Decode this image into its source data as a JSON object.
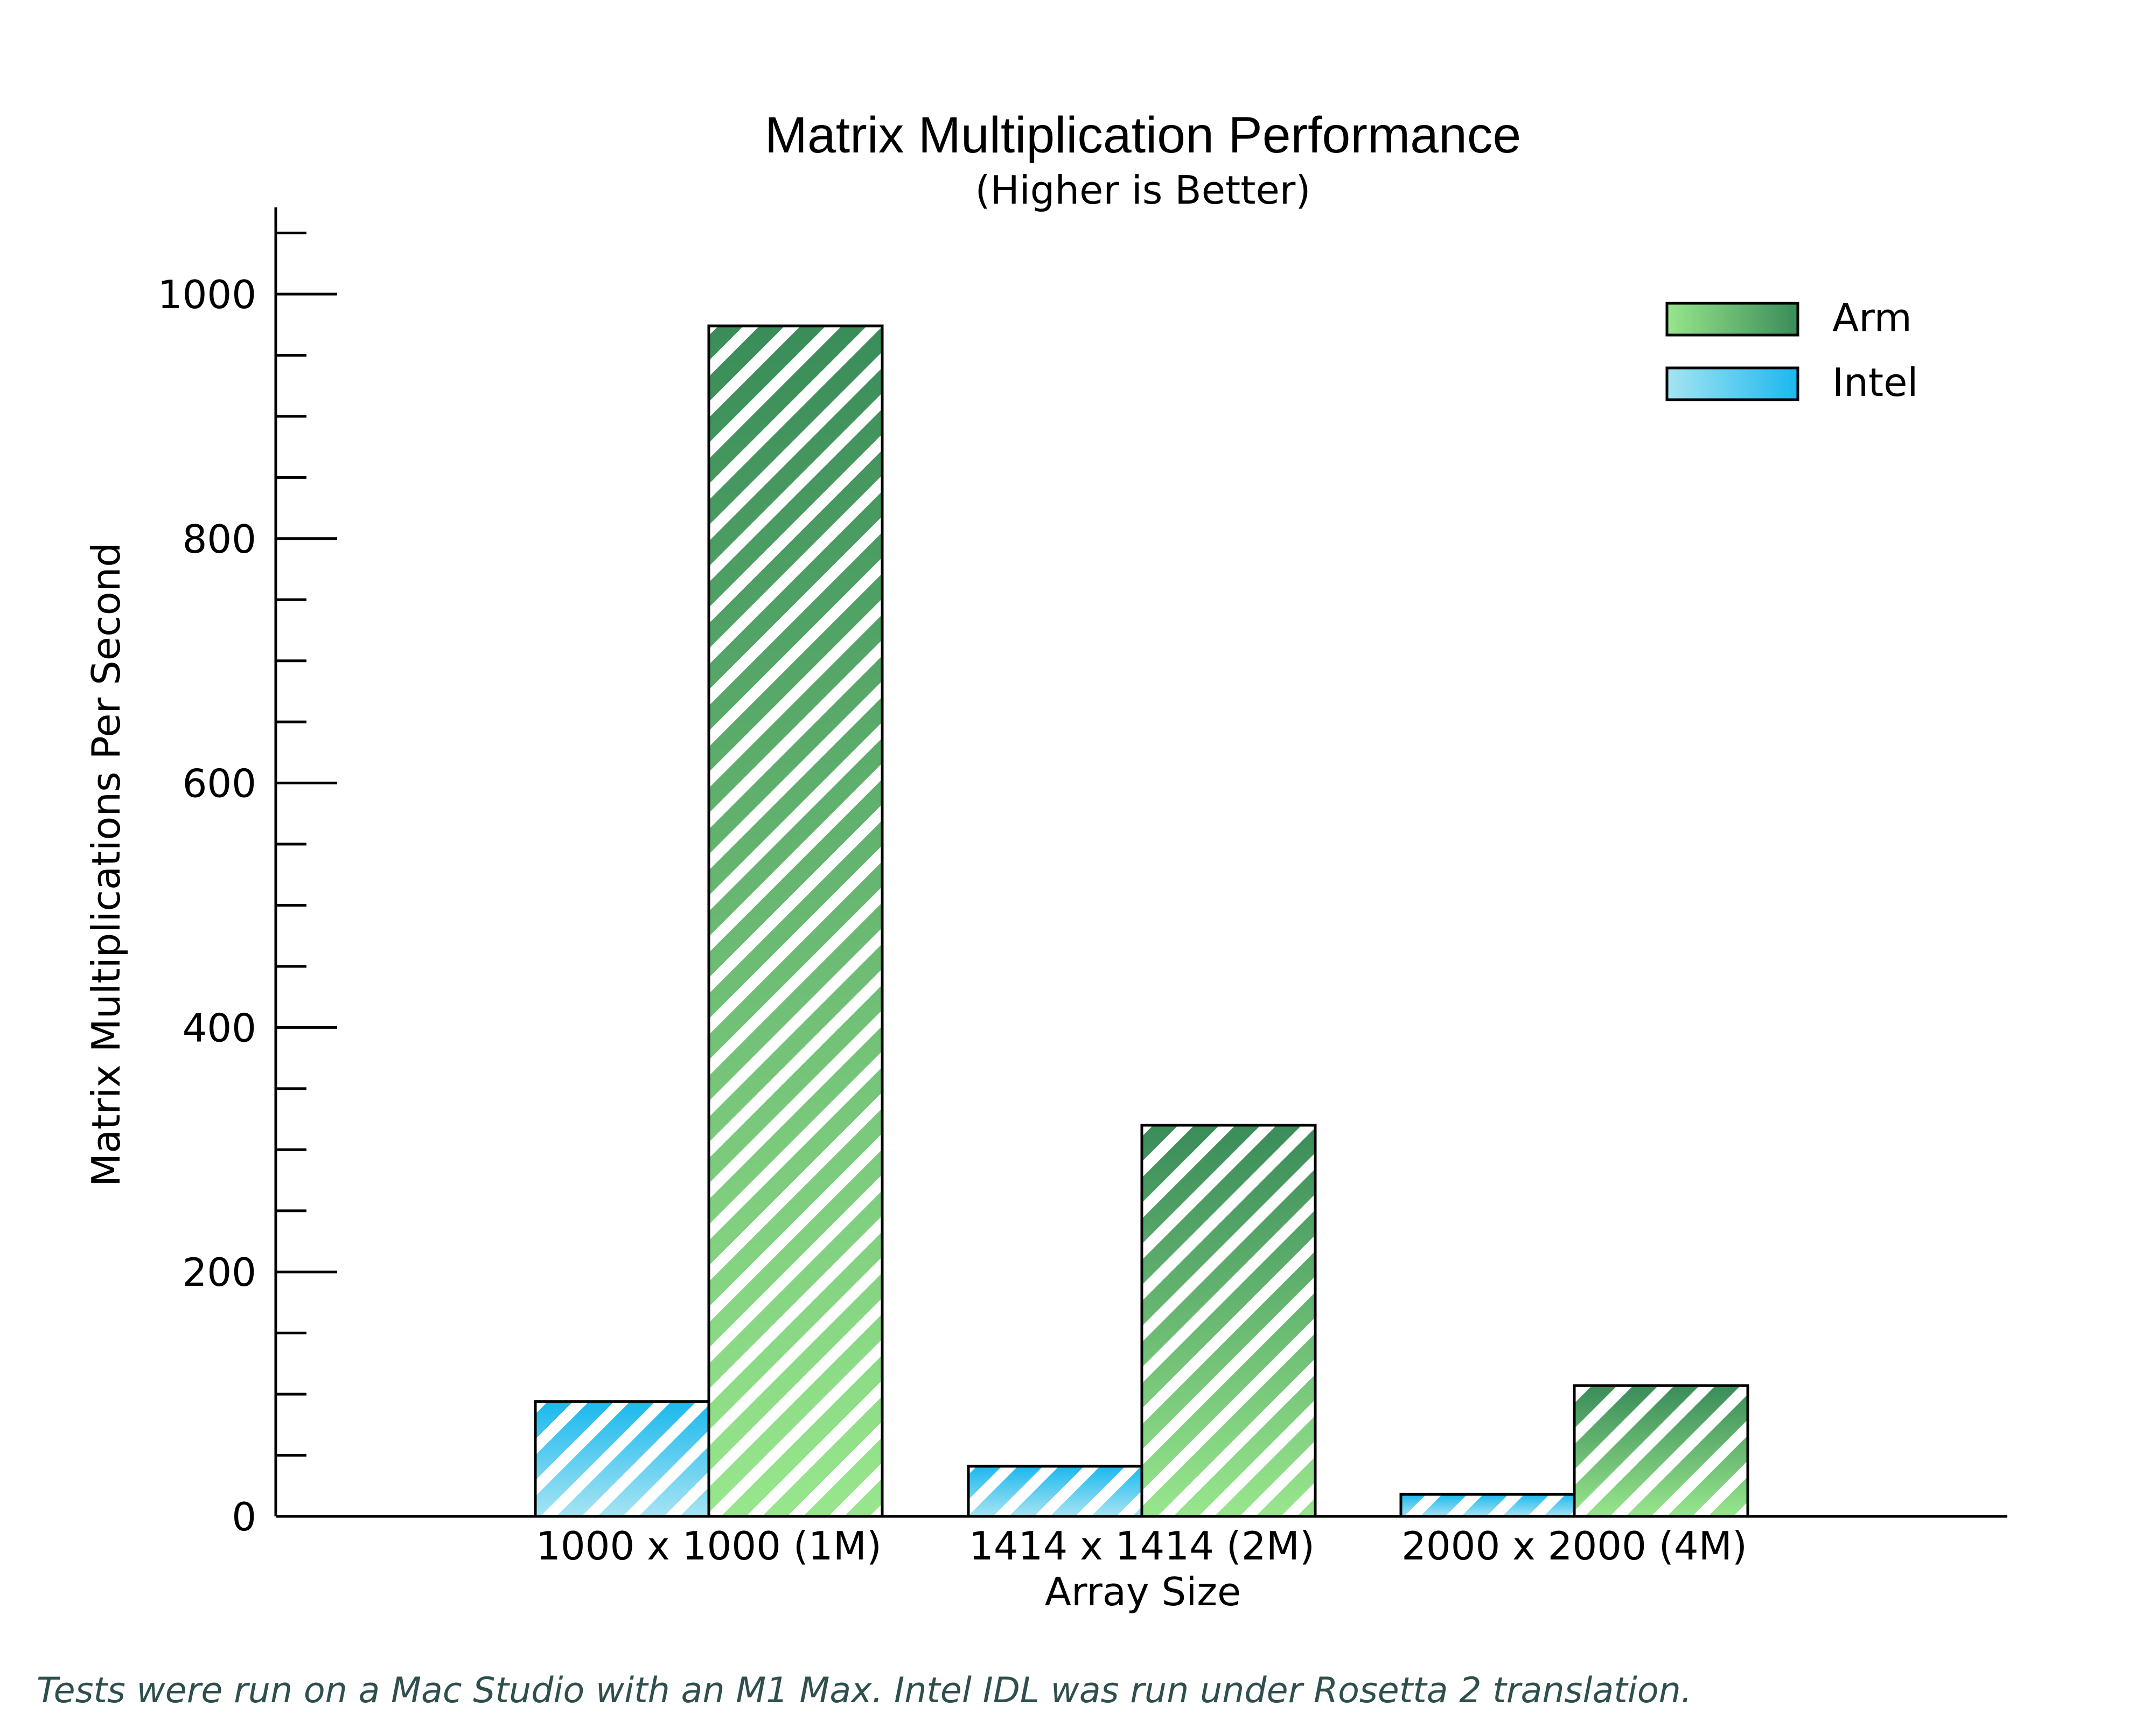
{
  "chart_data": {
    "type": "bar",
    "title": "Matrix Multiplication Performance",
    "subtitle": "(Higher is Better)",
    "xlabel": "Array Size",
    "ylabel": "Matrix Multiplications Per Second",
    "categories": [
      "1000 x 1000 (1M)",
      "1414 x 1414 (2M)",
      "2000 x 2000 (4M)"
    ],
    "series": [
      {
        "name": "Intel",
        "values": [
          94,
          41,
          18
        ],
        "gradient": [
          "#a6e4f2",
          "#1ab8ee"
        ]
      },
      {
        "name": "Arm",
        "values": [
          974,
          320,
          107
        ],
        "gradient": [
          "#98e68c",
          "#3a8c59"
        ]
      }
    ],
    "legend_order": [
      "Arm",
      "Intel"
    ],
    "legend_position": "top-right",
    "ylim": [
      0,
      1070
    ],
    "yticks": [
      0,
      200,
      400,
      600,
      800,
      1000
    ],
    "yticks_minor_step": 50,
    "grid": false,
    "hatch": "diagonal white stripes",
    "footnote": "Tests were run on a Mac Studio with an M1 Max.  Intel IDL was run under Rosetta 2 translation."
  }
}
